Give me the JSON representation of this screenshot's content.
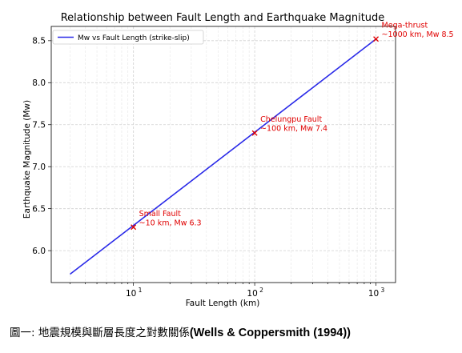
{
  "chart_data": {
    "type": "line",
    "title": "Relationship between Fault Length and Earthquake Magnitude",
    "xlabel": "Fault Length (km)",
    "ylabel": "Earthquake Magnitude (Mw)",
    "xscale": "log",
    "xlim": [
      2.1,
      1450
    ],
    "ylim": [
      5.62,
      8.67
    ],
    "x_ticks": [
      {
        "base": "10",
        "exp": "1",
        "value": 10
      },
      {
        "base": "10",
        "exp": "2",
        "value": 100
      },
      {
        "base": "10",
        "exp": "3",
        "value": 1000
      }
    ],
    "y_ticks": [
      "6.0",
      "6.5",
      "7.0",
      "7.5",
      "8.0",
      "8.5"
    ],
    "grid": true,
    "legend_position": "upper-left",
    "series": [
      {
        "name": "Mw vs Fault Length (strike-slip)",
        "color": "#2a2ae8",
        "x": [
          3,
          1000
        ],
        "y": [
          5.72,
          8.52
        ]
      }
    ],
    "markers": [
      {
        "x": 10,
        "y": 6.28,
        "color": "#e00000"
      },
      {
        "x": 100,
        "y": 7.4,
        "color": "#e00000"
      },
      {
        "x": 1000,
        "y": 8.52,
        "color": "#e00000"
      }
    ],
    "annotations": [
      {
        "x": 10,
        "y": 6.28,
        "lines": [
          "Small Fault",
          "~10 km, Mw 6.3"
        ]
      },
      {
        "x": 100,
        "y": 7.4,
        "lines": [
          "Chelungpu Fault",
          "~100 km, Mw 7.4"
        ]
      },
      {
        "x": 1000,
        "y": 8.52,
        "lines": [
          "Mega-thrust",
          "~1000 km, Mw 8.5"
        ]
      }
    ]
  },
  "caption": {
    "prefix": "圖一: 地震規模與斷層長度之對數關係",
    "citation": "(Wells & Coppersmith (1994))"
  }
}
